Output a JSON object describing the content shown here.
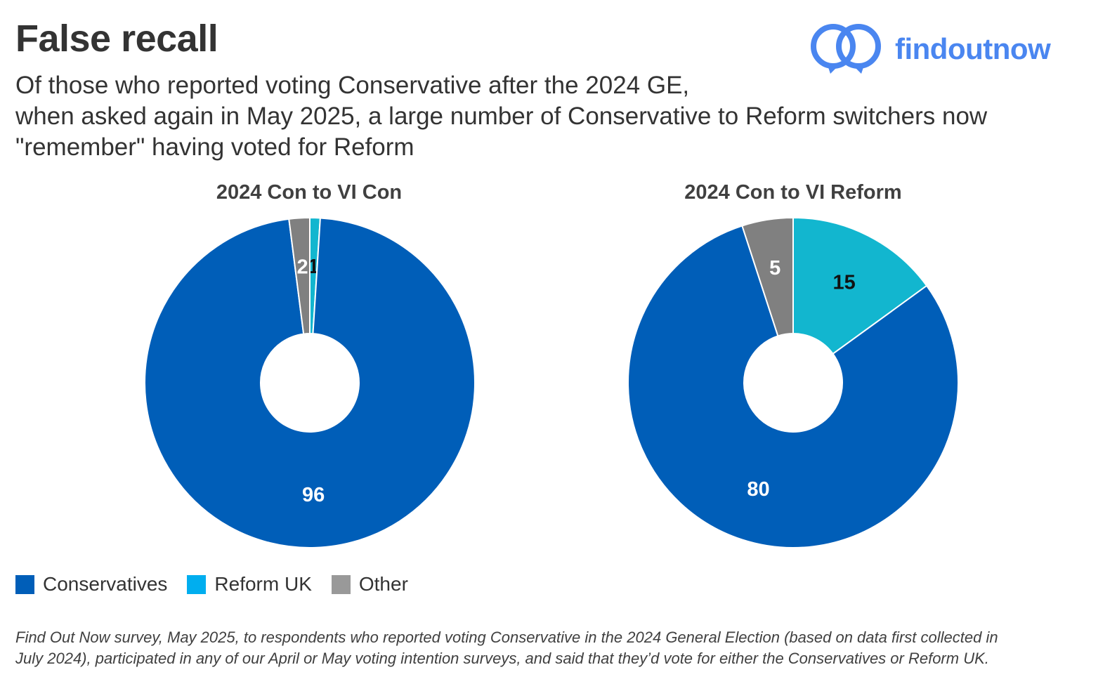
{
  "title": "False recall",
  "subtitle": {
    "line1": "Of those who reported voting Conservative after the 2024 GE,",
    "line2": "when asked again in May 2025, a large number of Conservative to Reform switchers now",
    "line3": "\"remember\" having voted for Reform"
  },
  "logo": {
    "text": "findoutnow",
    "color": "#4a86f0"
  },
  "legend": [
    {
      "label": "Conservatives",
      "color": "#005eb8"
    },
    {
      "label": "Reform UK",
      "color": "#12b6cf"
    },
    {
      "label": "Other",
      "color": "#808080"
    }
  ],
  "chart_data": [
    {
      "type": "pie",
      "title": "2024 Con to VI Con",
      "categories": [
        "Reform UK",
        "Conservatives",
        "Other"
      ],
      "values": [
        1,
        96,
        2
      ],
      "colors": [
        "#12b6cf",
        "#005eb8",
        "#808080"
      ],
      "label_colors": [
        "#111111",
        "#ffffff",
        "#ffffff"
      ]
    },
    {
      "type": "pie",
      "title": "2024 Con to VI Reform",
      "categories": [
        "Reform UK",
        "Conservatives",
        "Other"
      ],
      "values": [
        15,
        80,
        5
      ],
      "colors": [
        "#12b6cf",
        "#005eb8",
        "#808080"
      ],
      "label_colors": [
        "#111111",
        "#ffffff",
        "#ffffff"
      ]
    }
  ],
  "footnote": {
    "line1": "Find Out Now survey, May 2025, to respondents who reported voting Conservative in the 2024 General Election (based on data first collected in",
    "line2": "July 2024), participated in any of our April or May voting intention surveys, and said that they’d vote for either the Conservatives or Reform UK."
  }
}
